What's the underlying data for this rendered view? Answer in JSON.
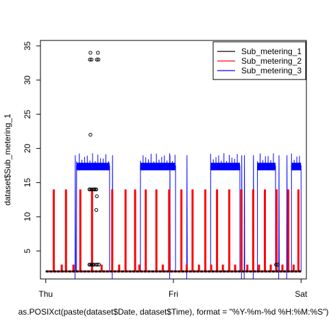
{
  "chart_data": {
    "type": "line",
    "xlabel": "as.POSIXct(paste(dataset$Date, dataset$Time), format = \"%Y-%m-%d %H:%M:%S\")",
    "ylabel": "dataset$Sub_metering_1",
    "x_ticks": [
      {
        "label": "Thu",
        "value": 0
      },
      {
        "label": "Fri",
        "value": 24
      },
      {
        "label": "Sat",
        "value": 48
      }
    ],
    "y_ticks": [
      5,
      10,
      15,
      20,
      25,
      30,
      35
    ],
    "xlim": [
      -1,
      49
    ],
    "ylim": [
      0.9,
      35.8
    ],
    "grid": false,
    "legend_position": "top-right",
    "series": [
      {
        "name": "Sub_metering_1",
        "color": "#000000",
        "style": "points",
        "baseline": 2,
        "points": [
          {
            "x": 8.2,
            "y": 3
          },
          {
            "x": 8.4,
            "y": 3
          },
          {
            "x": 8.6,
            "y": 3
          },
          {
            "x": 8.8,
            "y": 3
          },
          {
            "x": 9.0,
            "y": 3
          },
          {
            "x": 8.2,
            "y": 14
          },
          {
            "x": 8.4,
            "y": 14
          },
          {
            "x": 8.6,
            "y": 14
          },
          {
            "x": 8.9,
            "y": 14
          },
          {
            "x": 9.1,
            "y": 14
          },
          {
            "x": 9.3,
            "y": 14
          },
          {
            "x": 9.5,
            "y": 14
          },
          {
            "x": 8.4,
            "y": 22
          },
          {
            "x": 8.3,
            "y": 33
          },
          {
            "x": 8.6,
            "y": 33
          },
          {
            "x": 9.6,
            "y": 33
          },
          {
            "x": 9.9,
            "y": 33
          },
          {
            "x": 8.4,
            "y": 34
          },
          {
            "x": 9.8,
            "y": 34
          },
          {
            "x": 9.6,
            "y": 13
          },
          {
            "x": 9.5,
            "y": 11
          },
          {
            "x": 9.4,
            "y": 3
          },
          {
            "x": 9.7,
            "y": 3
          },
          {
            "x": 10.0,
            "y": 3
          },
          {
            "x": 43.3,
            "y": 3
          },
          {
            "x": 43.6,
            "y": 3
          }
        ]
      },
      {
        "name": "Sub_metering_2",
        "color": "#ff0000",
        "style": "line",
        "baseline": 2,
        "spikes": [
          {
            "x": 1.5,
            "y": 14
          },
          {
            "x": 3.8,
            "y": 14
          },
          {
            "x": 6.5,
            "y": 14
          },
          {
            "x": 8.7,
            "y": 14
          },
          {
            "x": 12.5,
            "y": 14
          },
          {
            "x": 15.0,
            "y": 14
          },
          {
            "x": 16.8,
            "y": 14
          },
          {
            "x": 18.8,
            "y": 14
          },
          {
            "x": 20.8,
            "y": 14
          },
          {
            "x": 23.2,
            "y": 14
          },
          {
            "x": 25.5,
            "y": 14
          },
          {
            "x": 27.6,
            "y": 14
          },
          {
            "x": 30.0,
            "y": 14
          },
          {
            "x": 32.2,
            "y": 14
          },
          {
            "x": 34.5,
            "y": 14
          },
          {
            "x": 36.8,
            "y": 14
          },
          {
            "x": 39.0,
            "y": 14
          },
          {
            "x": 41.2,
            "y": 14
          },
          {
            "x": 43.4,
            "y": 14
          },
          {
            "x": 45.6,
            "y": 14
          },
          {
            "x": 47.5,
            "y": 14
          }
        ],
        "small_bumps": [
          3.0,
          5.2,
          10.5,
          13.8,
          17.6,
          22.0,
          26.5,
          28.8,
          31.1,
          33.3,
          35.6,
          37.9,
          40.1,
          42.3,
          44.5,
          46.6
        ]
      },
      {
        "name": "Sub_metering_3",
        "color": "#0000ff",
        "style": "line",
        "baseline": 2,
        "plateaus": [
          {
            "start": 5.8,
            "end": 12.0,
            "level": 17.5
          },
          {
            "start": 17.8,
            "end": 24.4,
            "level": 17.5
          },
          {
            "start": 31.0,
            "end": 36.5,
            "level": 17.5
          },
          {
            "start": 39.8,
            "end": 43.2,
            "level": 17.5
          },
          {
            "start": 46.2,
            "end": 48.0,
            "level": 17.5
          }
        ],
        "drops": [
          5.5,
          12.5,
          23.3,
          26.5,
          36.8,
          37.3,
          39.0,
          43.8,
          45.3
        ]
      }
    ]
  }
}
